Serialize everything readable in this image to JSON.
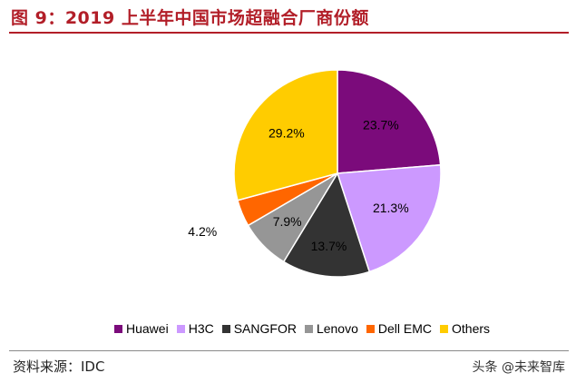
{
  "header": {
    "title": "图 9：2019 上半年中国市场超融合厂商份额"
  },
  "footer": {
    "source": "资料来源：IDC",
    "watermark": "头条 @未来智库"
  },
  "chart_data": {
    "type": "pie",
    "title": "",
    "start": "12 o'clock",
    "direction": "clockwise",
    "legend_position": "bottom",
    "slices": [
      {
        "name": "Huawei",
        "value": 23.7,
        "label": "23.7%",
        "color": "#7b0b7b"
      },
      {
        "name": "H3C",
        "value": 21.3,
        "label": "21.3%",
        "color": "#cc99ff"
      },
      {
        "name": "SANGFOR",
        "value": 13.7,
        "label": "13.7%",
        "color": "#333333"
      },
      {
        "name": "Lenovo",
        "value": 7.9,
        "label": "7.9%",
        "color": "#969696"
      },
      {
        "name": "Dell EMC",
        "value": 4.2,
        "label": "4.2%",
        "color": "#ff6600"
      },
      {
        "name": "Others",
        "value": 29.2,
        "label": "29.2%",
        "color": "#ffcc00"
      }
    ]
  }
}
